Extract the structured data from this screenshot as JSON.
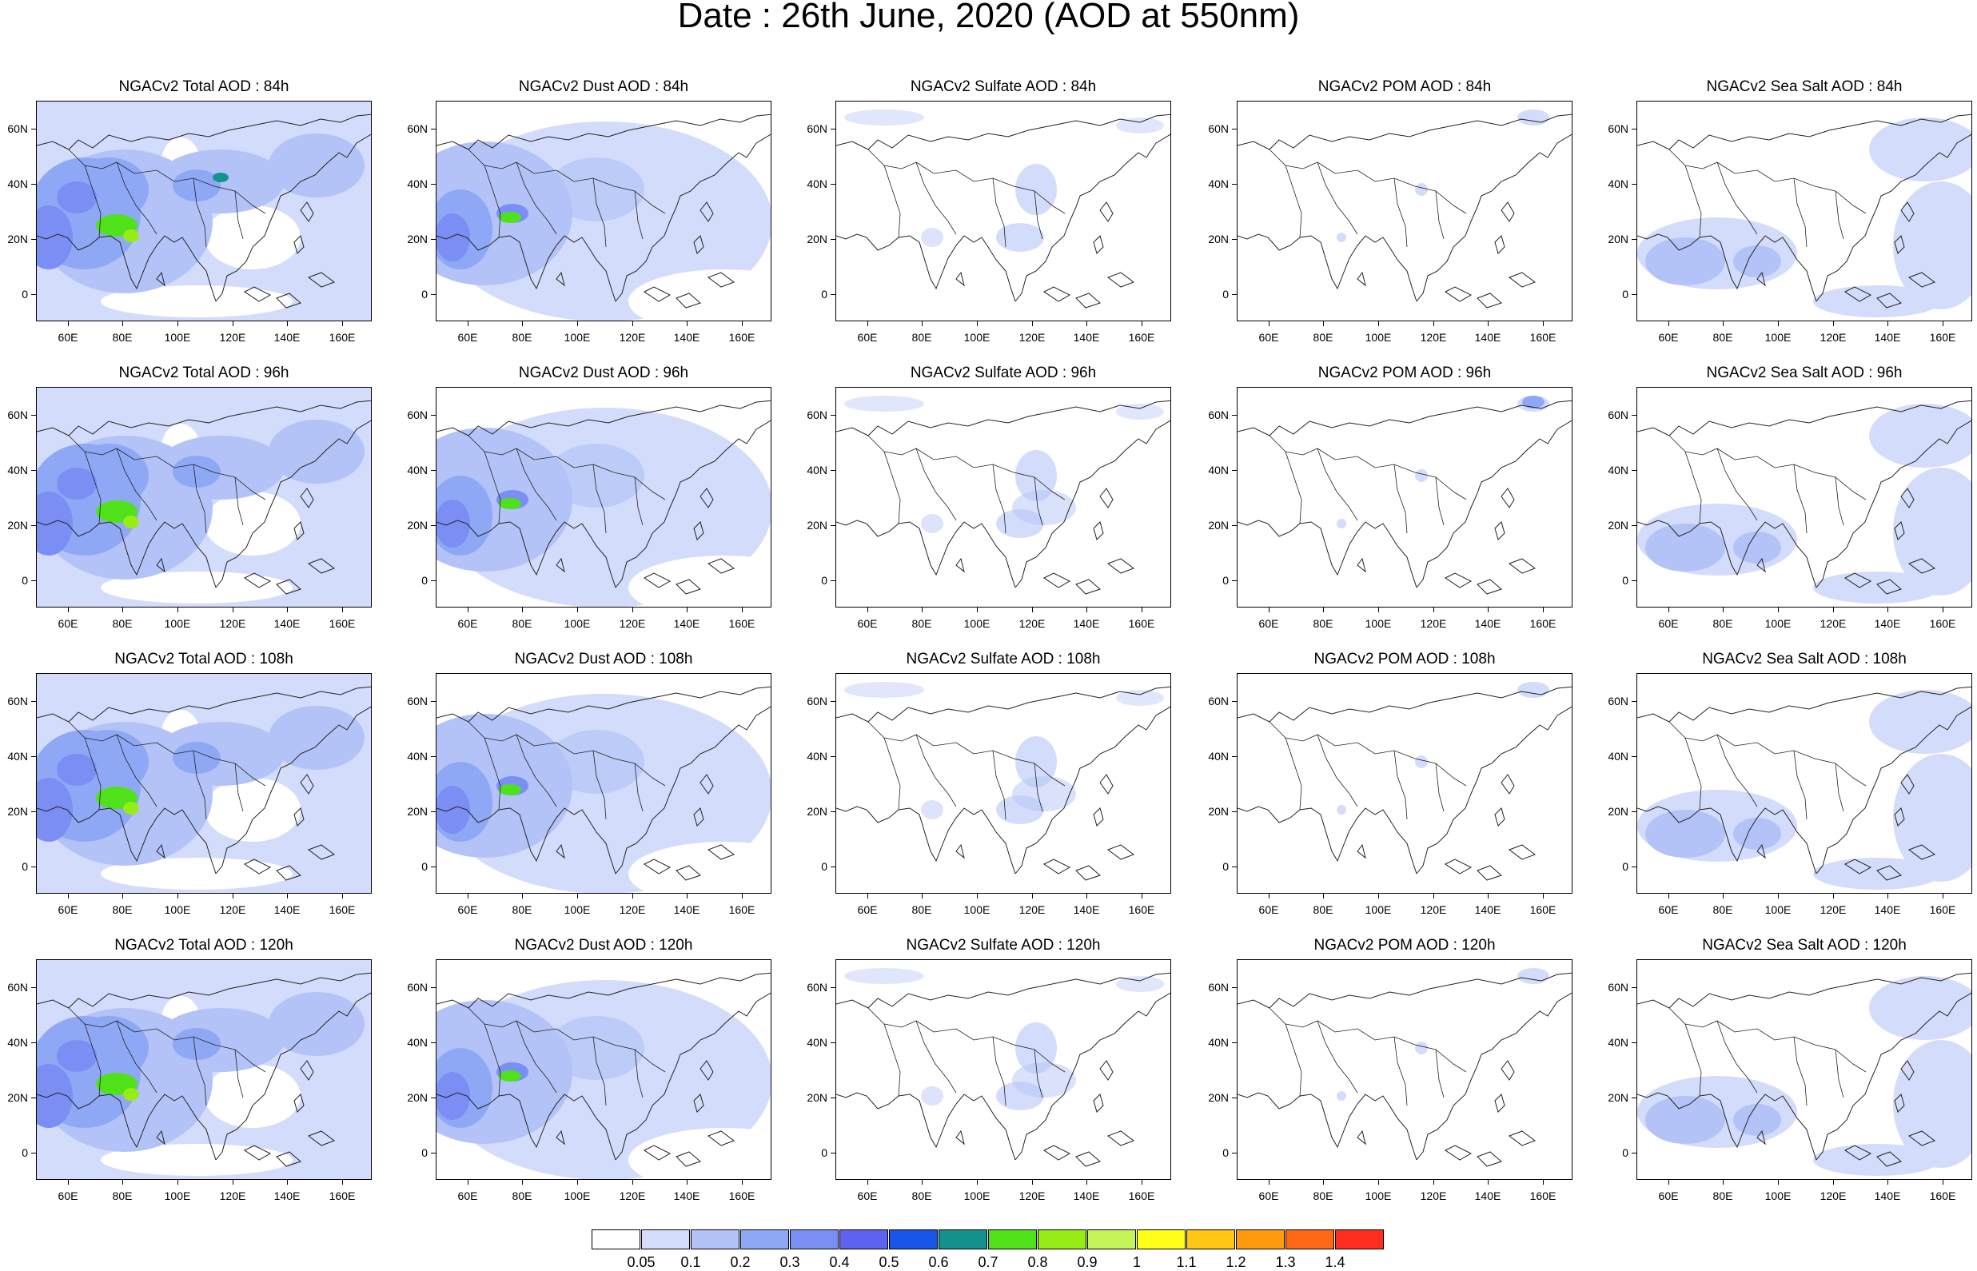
{
  "title": "Date : 26th June, 2020 (AOD at 550nm)",
  "lat_labels": [
    "60N",
    "40N",
    "20N",
    "0"
  ],
  "lon_labels": [
    "60E",
    "80E",
    "100E",
    "120E",
    "140E",
    "160E"
  ],
  "map_extent": {
    "lon": [
      50,
      170
    ],
    "lat": [
      -10,
      70
    ]
  },
  "panels": [
    {
      "row": 0,
      "col": 0,
      "title": "NGACv2 Total AOD : 84h",
      "species": "total"
    },
    {
      "row": 0,
      "col": 1,
      "title": "NGACv2 Dust AOD : 84h",
      "species": "dust"
    },
    {
      "row": 0,
      "col": 2,
      "title": "NGACv2 Sulfate AOD : 84h",
      "species": "sulfate"
    },
    {
      "row": 0,
      "col": 3,
      "title": "NGACv2 POM AOD : 84h",
      "species": "pom"
    },
    {
      "row": 0,
      "col": 4,
      "title": "NGACv2 Sea Salt AOD : 84h",
      "species": "seasalt"
    },
    {
      "row": 1,
      "col": 0,
      "title": "NGACv2 Total AOD : 96h",
      "species": "total"
    },
    {
      "row": 1,
      "col": 1,
      "title": "NGACv2 Dust AOD : 96h",
      "species": "dust"
    },
    {
      "row": 1,
      "col": 2,
      "title": "NGACv2 Sulfate AOD : 96h",
      "species": "sulfate"
    },
    {
      "row": 1,
      "col": 3,
      "title": "NGACv2 POM AOD : 96h",
      "species": "pom"
    },
    {
      "row": 1,
      "col": 4,
      "title": "NGACv2 Sea Salt AOD : 96h",
      "species": "seasalt"
    },
    {
      "row": 2,
      "col": 0,
      "title": "NGACv2 Total AOD : 108h",
      "species": "total"
    },
    {
      "row": 2,
      "col": 1,
      "title": "NGACv2 Dust AOD : 108h",
      "species": "dust"
    },
    {
      "row": 2,
      "col": 2,
      "title": "NGACv2 Sulfate AOD : 108h",
      "species": "sulfate"
    },
    {
      "row": 2,
      "col": 3,
      "title": "NGACv2 POM AOD : 108h",
      "species": "pom"
    },
    {
      "row": 2,
      "col": 4,
      "title": "NGACv2 Sea Salt AOD : 108h",
      "species": "seasalt"
    },
    {
      "row": 3,
      "col": 0,
      "title": "NGACv2 Total AOD : 120h",
      "species": "total"
    },
    {
      "row": 3,
      "col": 1,
      "title": "NGACv2 Dust AOD : 120h",
      "species": "dust"
    },
    {
      "row": 3,
      "col": 2,
      "title": "NGACv2 Sulfate AOD : 120h",
      "species": "sulfate"
    },
    {
      "row": 3,
      "col": 3,
      "title": "NGACv2 POM AOD : 120h",
      "species": "pom"
    },
    {
      "row": 3,
      "col": 4,
      "title": "NGACv2 Sea Salt  AOD : 120h",
      "species": "seasalt"
    }
  ],
  "colorbar": {
    "labels": [
      "0.05",
      "0.1",
      "0.2",
      "0.3",
      "0.4",
      "0.5",
      "0.6",
      "0.7",
      "0.8",
      "0.9",
      "1",
      "1.1",
      "1.2",
      "1.3",
      "1.4"
    ],
    "colors": [
      "#ffffff",
      "#d3dcfa",
      "#b3c3f7",
      "#8fa8f5",
      "#7b8ef4",
      "#5d62ef",
      "#1a55ea",
      "#14938e",
      "#4fe21a",
      "#96ec14",
      "#c5f458",
      "#ffff18",
      "#ffc613",
      "#ff9a0c",
      "#ff6915",
      "#ff2e1f"
    ]
  }
}
